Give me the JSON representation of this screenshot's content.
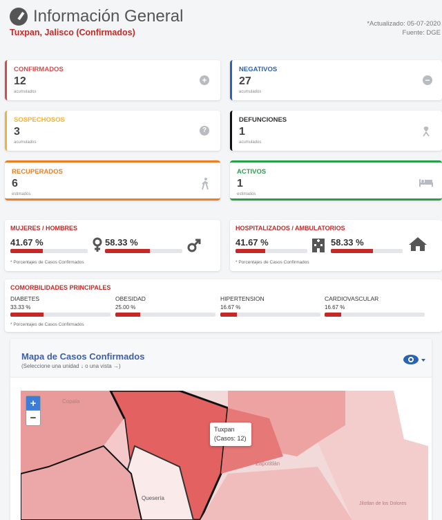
{
  "header": {
    "title": "Información General",
    "subtitle": "Tuxpan, Jalisco (Confirmados)",
    "updated": "*Actualizado: 05-07-2020",
    "source": "Fuente: DGE"
  },
  "stats": {
    "confirmados": {
      "label": "CONFIRMADOS",
      "value": "12",
      "unit": "acumulados",
      "color": "#d84a4a",
      "icon": "plus-circle-icon"
    },
    "negativos": {
      "label": "NEGATIVOS",
      "value": "27",
      "unit": "acumulados",
      "color": "#2a63b3",
      "icon": "minus-circle-icon"
    },
    "sospechosos": {
      "label": "SOSPECHOSOS",
      "value": "3",
      "unit": "acumulados",
      "color": "#f2b13a",
      "icon": "question-circle-icon"
    },
    "defunciones": {
      "label": "DEFUNCIONES",
      "value": "1",
      "unit": "acumulados",
      "color": "#111111",
      "icon": "ribbon-icon"
    },
    "recuperados": {
      "label": "RECUPERADOS",
      "value": "6",
      "unit": "estimados",
      "color": "#ef7d22",
      "icon": "walking-icon"
    },
    "activos": {
      "label": "ACTIVOS",
      "value": "1",
      "unit": "estimados",
      "color": "#27a04a",
      "icon": "bed-icon"
    }
  },
  "gender": {
    "label": "MUJERES / HOMBRES",
    "women_pct": "41.67 %",
    "men_pct": "58.33 %",
    "women_fraction": 0.4167,
    "men_fraction": 0.5833,
    "note": "* Porcentajes de Casos Confirmados"
  },
  "hospital": {
    "label": "HOSPITALIZADOS / AMBULATORIOS",
    "hosp_pct": "41.67 %",
    "amb_pct": "58.33 %",
    "hosp_fraction": 0.4167,
    "amb_fraction": 0.5833,
    "note": "* Porcentajes de Casos Confirmados"
  },
  "comorbidities": {
    "label": "COMORBILIDADES PRINCIPALES",
    "items": [
      {
        "name": "DIABETES",
        "pct": "33.33 %",
        "fraction": 0.3333
      },
      {
        "name": "OBESIDAD",
        "pct": "25.00 %",
        "fraction": 0.25
      },
      {
        "name": "HIPERTENSION",
        "pct": "16.67 %",
        "fraction": 0.1667
      },
      {
        "name": "CARDIOVASCULAR",
        "pct": "16.67 %",
        "fraction": 0.1667
      }
    ],
    "note": "* Porcentajes de Casos Confirmados"
  },
  "map": {
    "title": "Mapa de Casos Confirmados",
    "subtitle": "(Seleccione una unidad ↓ o una vista →)",
    "zoom_in": "+",
    "zoom_out": "−",
    "tooltip_name": "Tuxpan",
    "tooltip_cases": "(Casos: 12)",
    "labels": {
      "copala": "Copala",
      "zapotitlan": "Zapotitlán",
      "quesería": "Quesería",
      "jilotlan": "Jilotlan de los Dolores"
    }
  }
}
